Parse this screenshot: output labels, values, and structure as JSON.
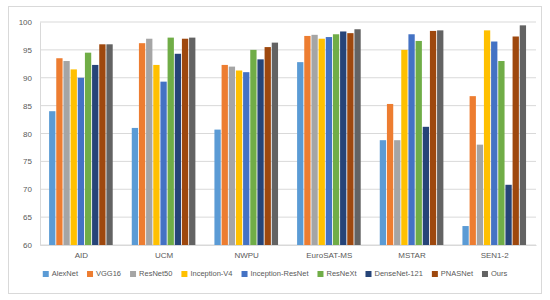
{
  "chart_data": {
    "type": "bar",
    "categories": [
      "AID",
      "UCM",
      "NWPU",
      "EuroSAT-MS",
      "MSTAR",
      "SEN1-2"
    ],
    "series": [
      {
        "name": "AlexNet",
        "color": "#5b9bd5",
        "values": [
          84,
          81,
          80.7,
          92.8,
          78.8,
          63.4
        ]
      },
      {
        "name": "VGG16",
        "color": "#ed7d31",
        "values": [
          93.5,
          96.2,
          92.3,
          97.5,
          85.3,
          86.7
        ]
      },
      {
        "name": "ResNet50",
        "color": "#a5a5a5",
        "values": [
          93,
          97,
          92,
          97.7,
          78.8,
          78
        ]
      },
      {
        "name": "Inception-V4",
        "color": "#ffc000",
        "values": [
          91.5,
          92.3,
          91.3,
          97,
          95,
          98.5
        ]
      },
      {
        "name": "Inception-ResNet",
        "color": "#4472c4",
        "values": [
          90,
          89.3,
          91,
          97.3,
          97.8,
          96.5
        ]
      },
      {
        "name": "ResNeXt",
        "color": "#70ad47",
        "values": [
          94.5,
          97.2,
          95,
          97.8,
          96.6,
          93
        ]
      },
      {
        "name": "DenseNet-121",
        "color": "#264478",
        "values": [
          92.3,
          94.3,
          93.3,
          98.3,
          81.2,
          70.8
        ]
      },
      {
        "name": "PNASNet",
        "color": "#9e480e",
        "values": [
          96,
          97,
          95.5,
          98,
          98.4,
          97.4
        ]
      },
      {
        "name": "Ours",
        "color": "#636363",
        "values": [
          96,
          97.2,
          96.3,
          98.7,
          98.5,
          99.4
        ]
      }
    ],
    "ylim": [
      60,
      100
    ],
    "yticks": [
      60,
      65,
      70,
      75,
      80,
      85,
      90,
      95,
      100
    ],
    "grid": true,
    "legend": "bottom"
  }
}
